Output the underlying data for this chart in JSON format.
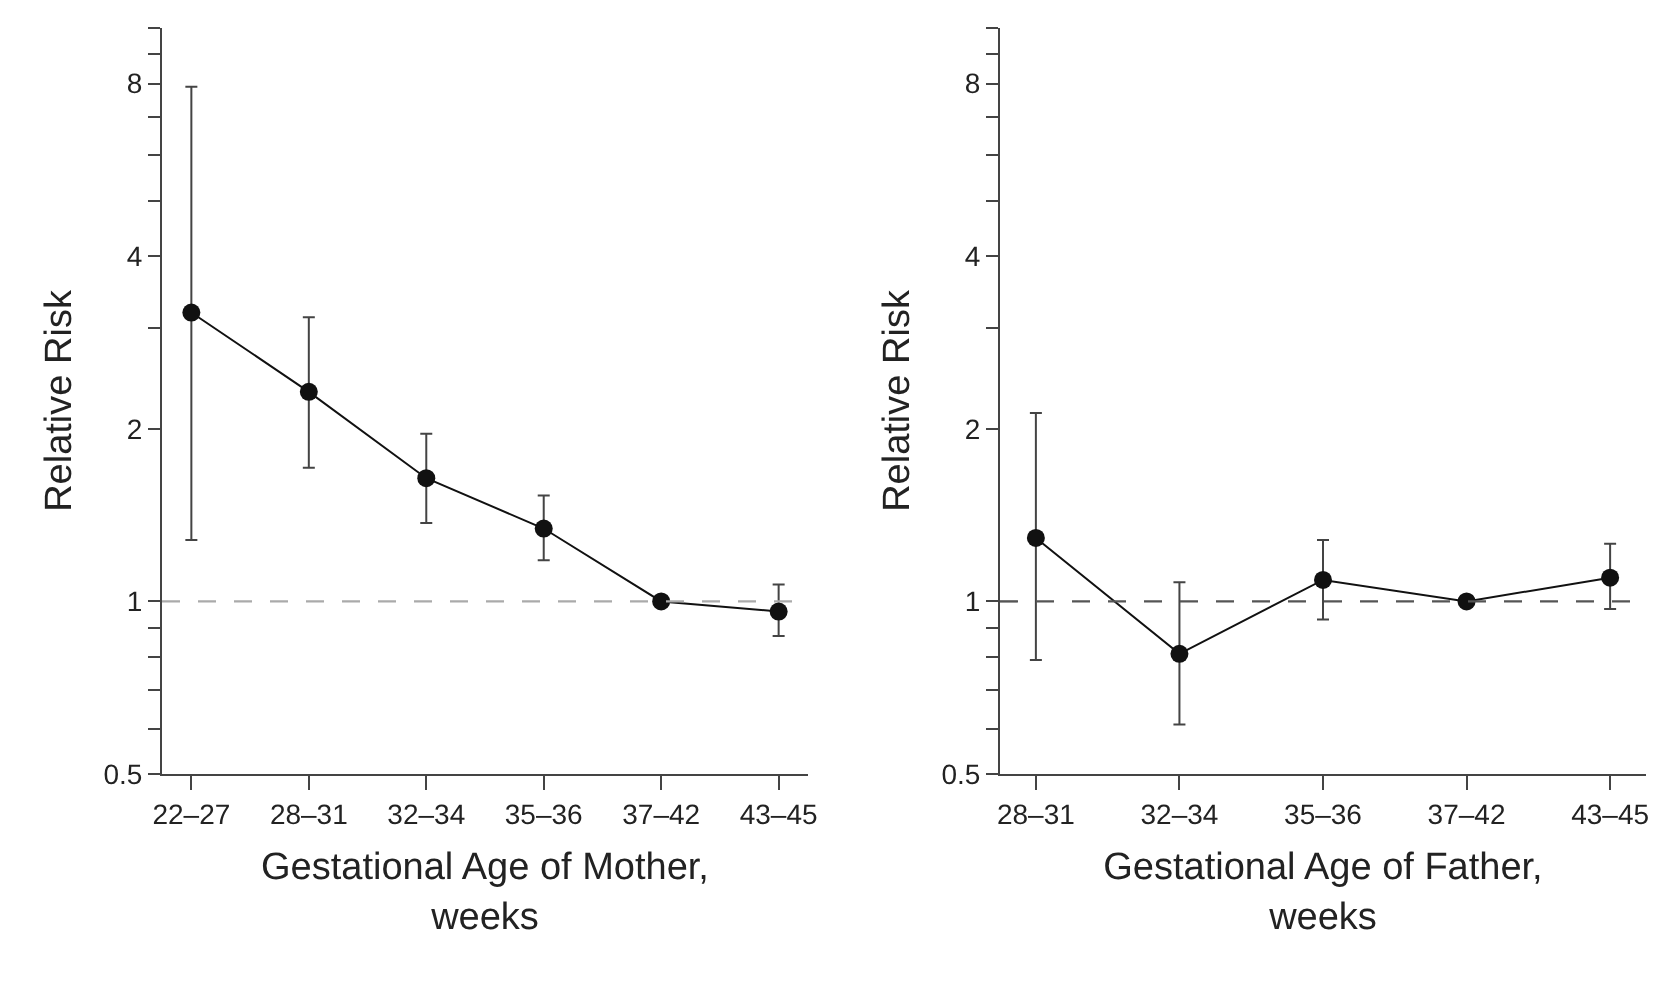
{
  "chart_data": [
    {
      "type": "line",
      "xlabel": "Gestational Age of Mother,\nweeks",
      "ylabel": "Relative Risk",
      "categories": [
        "22–27",
        "28–31",
        "32–34",
        "35–36",
        "37–42",
        "43–45"
      ],
      "values": [
        3.19,
        2.32,
        1.64,
        1.34,
        1.0,
        0.96
      ],
      "errors": [
        [
          1.28,
          7.9
        ],
        [
          1.71,
          3.13
        ],
        [
          1.37,
          1.96
        ],
        [
          1.18,
          1.53
        ],
        null,
        [
          0.87,
          1.07
        ]
      ],
      "color": "#111111",
      "marker": "circle",
      "line_style": "solid",
      "log": "y",
      "ylim": [
        0.5,
        10
      ],
      "yticks": [
        0.5,
        {
          "value": 0.6,
          "label": null
        },
        {
          "value": 0.7,
          "label": null
        },
        {
          "value": 0.8,
          "label": null
        },
        {
          "value": 0.9,
          "label": null
        },
        1,
        2,
        {
          "value": 3,
          "label": null
        },
        4,
        {
          "value": 5,
          "label": null
        },
        {
          "value": 6,
          "label": null
        },
        {
          "value": 7,
          "label": null
        },
        8,
        {
          "value": 9,
          "label": null
        },
        {
          "value": 10,
          "label": null
        }
      ],
      "ref_lines": [
        {
          "axis": "y",
          "value": 1,
          "color": "#aaaaaa",
          "line_style": "dashed"
        }
      ]
    },
    {
      "type": "line",
      "xlabel": "Gestational Age of Father,\nweeks",
      "ylabel": "Relative Risk",
      "categories": [
        "28–31",
        "32–34",
        "35–36",
        "37–42",
        "43–45"
      ],
      "values": [
        1.29,
        0.81,
        1.09,
        1.0,
        1.1
      ],
      "errors": [
        [
          0.79,
          2.13
        ],
        [
          0.61,
          1.08
        ],
        [
          0.93,
          1.28
        ],
        null,
        [
          0.97,
          1.26
        ]
      ],
      "color": "#111111",
      "marker": "circle",
      "line_style": "solid",
      "log": "y",
      "ylim": [
        0.5,
        10
      ],
      "yticks": [
        0.5,
        {
          "value": 0.6,
          "label": null
        },
        {
          "value": 0.7,
          "label": null
        },
        {
          "value": 0.8,
          "label": null
        },
        {
          "value": 0.9,
          "label": null
        },
        1,
        2,
        {
          "value": 3,
          "label": null
        },
        4,
        {
          "value": 5,
          "label": null
        },
        {
          "value": 6,
          "label": null
        },
        {
          "value": 7,
          "label": null
        },
        8,
        {
          "value": 9,
          "label": null
        },
        {
          "value": 10,
          "label": null
        }
      ],
      "ref_lines": [
        {
          "axis": "y",
          "value": 1,
          "color": "#555555",
          "line_style": "dashed"
        }
      ]
    }
  ]
}
